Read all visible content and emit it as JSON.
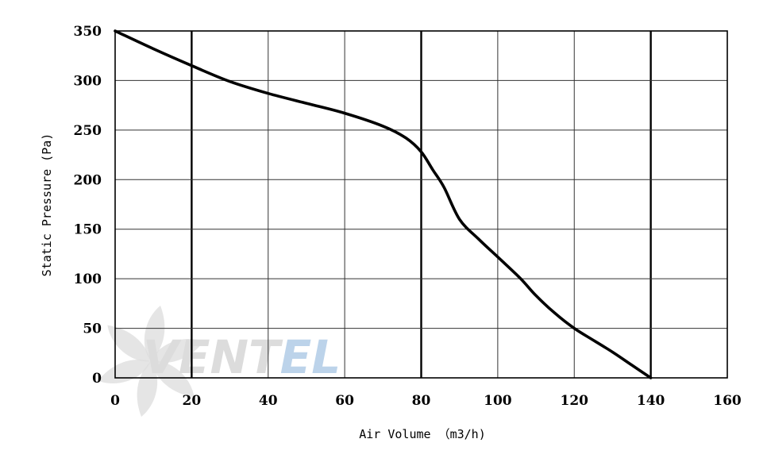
{
  "chart_data": {
    "type": "line",
    "title": "",
    "xlabel": "Air Volume （m3/h)",
    "ylabel": "Static Pressure (Pa)",
    "xlim": [
      0,
      160
    ],
    "ylim": [
      0,
      350
    ],
    "x_ticks": [
      0,
      20,
      40,
      60,
      80,
      100,
      120,
      140,
      160
    ],
    "y_ticks": [
      0,
      50,
      100,
      150,
      200,
      250,
      300,
      350
    ],
    "x_major_gridlines": [
      20,
      80,
      140
    ],
    "grid": true,
    "legend": "none",
    "series": [
      {
        "color": "#000000",
        "points": [
          [
            0,
            350
          ],
          [
            10,
            332
          ],
          [
            20,
            315
          ],
          [
            30,
            299
          ],
          [
            40,
            287
          ],
          [
            50,
            277
          ],
          [
            60,
            267
          ],
          [
            70,
            254
          ],
          [
            76,
            242
          ],
          [
            80,
            228
          ],
          [
            83,
            210
          ],
          [
            86,
            192
          ],
          [
            90,
            160
          ],
          [
            95,
            140
          ],
          [
            100,
            122
          ],
          [
            106,
            100
          ],
          [
            110,
            83
          ],
          [
            115,
            65
          ],
          [
            120,
            50
          ],
          [
            125,
            38
          ],
          [
            130,
            26
          ],
          [
            135,
            13
          ],
          [
            140,
            0
          ]
        ]
      }
    ]
  },
  "watermark": {
    "text_dark": "VENT",
    "text_light": "EL",
    "dark_color": "#dcdcdc",
    "light_color": "#bcd3ea",
    "icon": "fan-blades-icon"
  }
}
